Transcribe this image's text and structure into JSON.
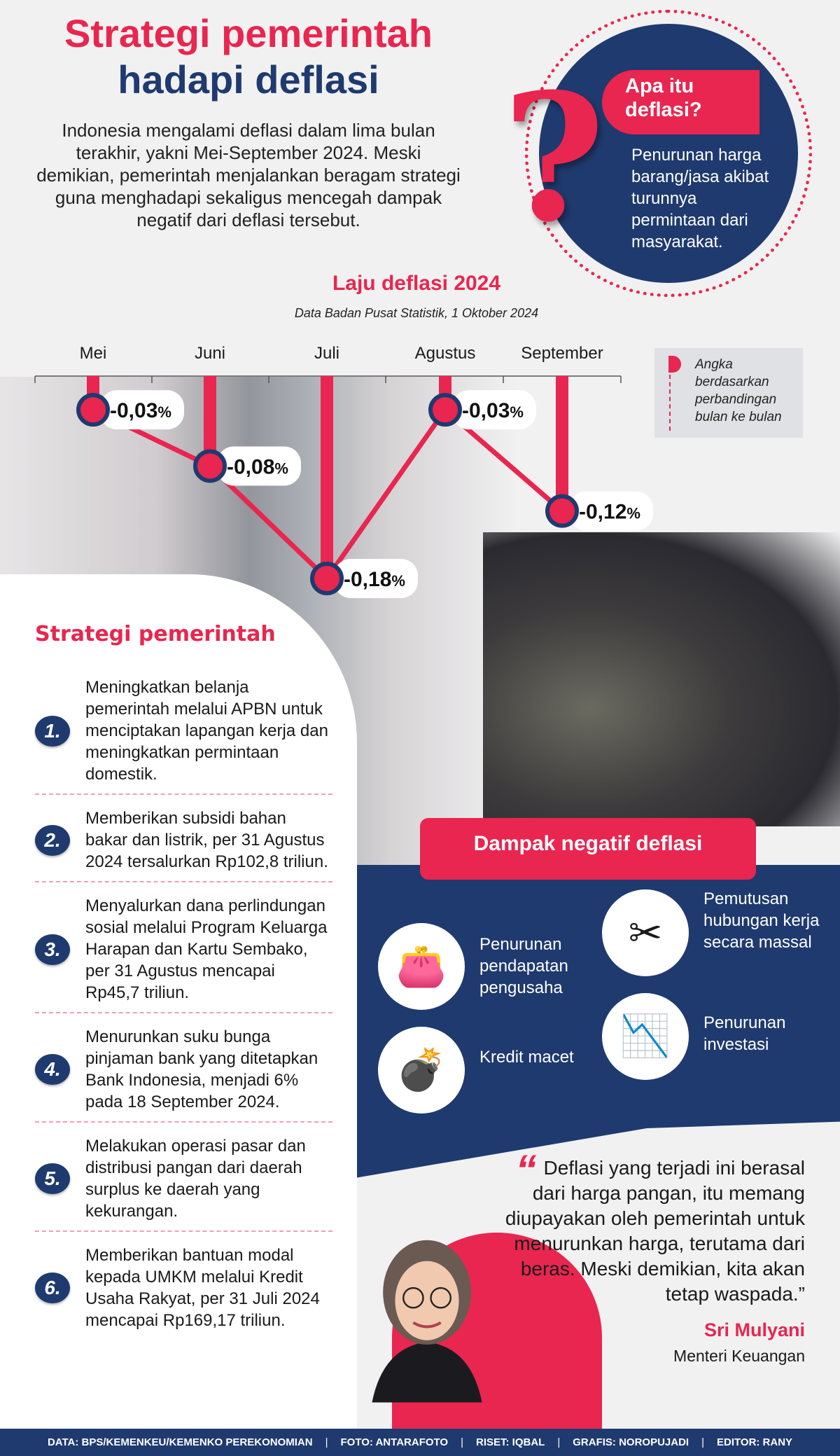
{
  "header": {
    "title_line1": "Strategi pemerintah",
    "title_line2": "hadapi deflasi",
    "intro": "Indonesia mengalami deflasi dalam lima bulan terakhir, yakni Mei-September 2024. Meski demikian, pemerintah menjalankan beragam strategi guna menghadapi sekaligus mencegah dampak negatif dari deflasi tersebut."
  },
  "definition": {
    "title": "Apa itu deflasi?",
    "text": "Penurunan harga barang/jasa akibat turunnya permintaan dari masyarakat."
  },
  "chart_data": {
    "type": "line",
    "title": "Laju deflasi 2024",
    "subtitle": "Data Badan Pusat Statistik, 1 Oktober 2024",
    "categories": [
      "Mei",
      "Juni",
      "Juli",
      "Agustus",
      "September"
    ],
    "values": [
      -0.03,
      -0.08,
      -0.18,
      -0.03,
      -0.12
    ],
    "labels": [
      "-0,03",
      "-0,08",
      "-0,18",
      "-0,03",
      "-0,12"
    ],
    "unit": "%",
    "legend": "Angka berdasarkan perbandingan bulan ke bulan",
    "legend_placement": "right",
    "colors": {
      "line": "#e8264f",
      "marker": "#1f3a6e"
    }
  },
  "strategy": {
    "title": "Strategi pemerintah",
    "items": [
      {
        "num": "1.",
        "text": "Meningkatkan belanja pemerintah melalui APBN untuk menciptakan lapangan kerja dan meningkatkan permintaan domestik."
      },
      {
        "num": "2.",
        "text": "Memberikan subsidi bahan bakar dan listrik, per 31 Agustus 2024 tersalurkan Rp102,8 triliun."
      },
      {
        "num": "3.",
        "text": "Menyalurkan dana perlindungan sosial melalui Program Keluarga Harapan dan Kartu Sembako, per 31 Agustus mencapai Rp45,7 triliun."
      },
      {
        "num": "4.",
        "text": "Menurunkan suku bunga pinjaman bank yang ditetapkan Bank Indonesia, menjadi 6% pada 18 September 2024."
      },
      {
        "num": "5.",
        "text": "Melakukan operasi pasar dan distribusi pangan dari daerah surplus ke daerah yang kekurangan."
      },
      {
        "num": "6.",
        "text": "Memberikan bantuan modal kepada UMKM melalui Kredit Usaha Rakyat, per 31 Juli 2024 mencapai Rp169,17 triliun."
      }
    ]
  },
  "impact": {
    "title": "Dampak negatif deflasi",
    "items": [
      {
        "icon": "wallet-icon",
        "text": "Penurunan pendapatan pengusaha"
      },
      {
        "icon": "briefcase-scissors-icon",
        "text": "Pemutusan hubungan kerja secara massal"
      },
      {
        "icon": "weight-on-money-icon",
        "text": "Kredit macet"
      },
      {
        "icon": "declining-chart-icon",
        "text": "Penurunan investasi"
      }
    ]
  },
  "quote": {
    "text": "Deflasi yang terjadi ini berasal dari harga pangan, itu memang diupayakan oleh pemerintah untuk menurunkan harga, terutama dari beras. Meski demikian, kita akan tetap waspada.”",
    "speaker": "Sri Mulyani",
    "role": "Menteri Keuangan"
  },
  "footer": [
    "DATA: BPS/KEMENKEU/KEMENKO PEREKONOMIAN",
    "FOTO: ANTARAFOTO",
    "RISET: IQBAL",
    "GRAFIS: NOROPUJADI",
    "EDITOR: RANY"
  ],
  "colors": {
    "red": "#e8264f",
    "navy": "#1f3a6e"
  }
}
